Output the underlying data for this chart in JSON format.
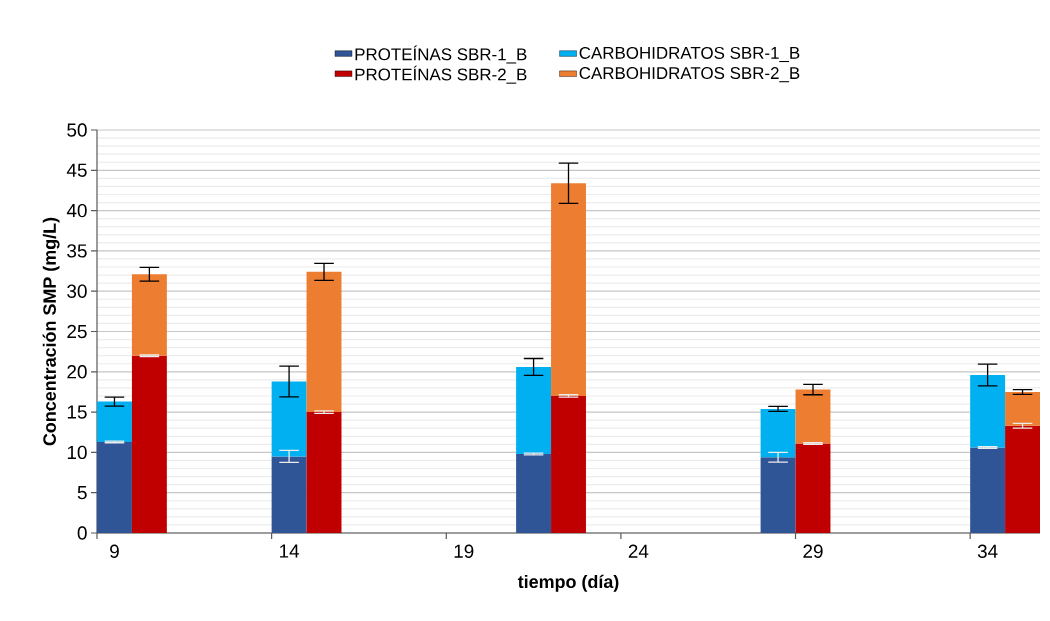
{
  "chart_data": {
    "type": "bar",
    "stacked": true,
    "xlabel": "tiempo (día)",
    "ylabel": "Concentración SMP (mg/L)",
    "categories": [
      "9",
      null,
      null,
      null,
      null,
      "14",
      null,
      null,
      null,
      null,
      "19",
      null,
      null,
      null,
      null,
      "24",
      null,
      null,
      null,
      null,
      "29",
      null,
      null,
      null,
      null,
      "34",
      null
    ],
    "ylim": [
      0,
      50
    ],
    "yticks": [
      0,
      5,
      10,
      15,
      20,
      25,
      30,
      35,
      40,
      45,
      50
    ],
    "grid": "y",
    "legend": "top",
    "series": [
      {
        "name": "PROTEÍNAS SBR-1_B",
        "color": "#2f5597",
        "values": [
          11.3,
          null,
          null,
          null,
          null,
          9.5,
          null,
          null,
          null,
          null,
          null,
          null,
          9.8,
          null,
          null,
          null,
          null,
          null,
          null,
          9.4,
          null,
          null,
          null,
          null,
          null,
          10.6,
          null
        ],
        "errors": [
          0.1,
          null,
          null,
          null,
          null,
          0.75,
          null,
          null,
          null,
          null,
          null,
          null,
          0.1,
          null,
          null,
          null,
          null,
          null,
          null,
          0.6,
          null,
          null,
          null,
          null,
          null,
          0.1,
          null
        ]
      },
      {
        "name": "CARBOHIDRATOS SBR-1_B",
        "color": "#00b0f0",
        "values": [
          5.0,
          null,
          null,
          null,
          null,
          9.3,
          null,
          null,
          null,
          null,
          null,
          null,
          10.8,
          null,
          null,
          null,
          null,
          null,
          null,
          6.0,
          null,
          null,
          null,
          null,
          null,
          9.0,
          null
        ],
        "errors": [
          0.55,
          null,
          null,
          null,
          null,
          1.9,
          null,
          null,
          null,
          null,
          null,
          null,
          1.05,
          null,
          null,
          null,
          null,
          null,
          null,
          0.3,
          null,
          null,
          null,
          null,
          null,
          1.35,
          null
        ]
      },
      {
        "name": "PROTEÍNAS SBR-2_B",
        "color": "#c00000",
        "values": [
          null,
          22.0,
          null,
          null,
          null,
          null,
          15.0,
          null,
          null,
          null,
          null,
          null,
          null,
          17.0,
          null,
          null,
          null,
          null,
          null,
          null,
          11.1,
          null,
          null,
          null,
          null,
          null,
          13.3
        ],
        "errors": [
          null,
          0.1,
          null,
          null,
          null,
          null,
          0.15,
          null,
          null,
          null,
          null,
          null,
          null,
          0.15,
          null,
          null,
          null,
          null,
          null,
          null,
          0.1,
          null,
          null,
          null,
          null,
          null,
          0.3
        ]
      },
      {
        "name": "CARBOHIDRATOS SBR-2_B",
        "color": "#ed7d31",
        "values": [
          null,
          10.1,
          null,
          null,
          null,
          null,
          17.4,
          null,
          null,
          null,
          null,
          null,
          null,
          26.4,
          null,
          null,
          null,
          null,
          null,
          null,
          6.7,
          null,
          null,
          null,
          null,
          null,
          4.2
        ],
        "errors": [
          null,
          0.85,
          null,
          null,
          null,
          null,
          1.05,
          null,
          null,
          null,
          null,
          null,
          null,
          2.5,
          null,
          null,
          null,
          null,
          null,
          null,
          0.65,
          null,
          null,
          null,
          null,
          null,
          0.3
        ]
      }
    ]
  }
}
